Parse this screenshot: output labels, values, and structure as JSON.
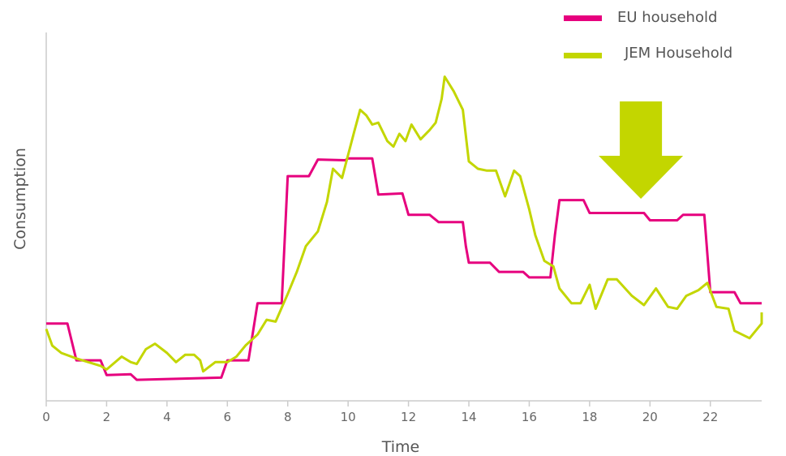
{
  "chart_data": {
    "type": "line",
    "xlabel": "Time",
    "ylabel": "Consumption",
    "xlim": [
      0,
      23.7
    ],
    "ylim": [
      0,
      100
    ],
    "xticks": [
      0,
      2,
      4,
      6,
      8,
      10,
      12,
      14,
      16,
      18,
      20,
      22
    ],
    "grid": false,
    "legend_position": "top-right",
    "series": [
      {
        "name": "EU household",
        "color": "#e6007e",
        "points": [
          [
            0,
            21
          ],
          [
            0.7,
            21
          ],
          [
            1,
            11
          ],
          [
            1.8,
            11
          ],
          [
            2,
            7
          ],
          [
            2.8,
            7.2
          ],
          [
            3,
            5.7
          ],
          [
            5.8,
            6.3
          ],
          [
            6,
            11
          ],
          [
            6.7,
            11
          ],
          [
            7,
            26.5
          ],
          [
            7.8,
            26.5
          ],
          [
            8,
            61
          ],
          [
            8.7,
            61
          ],
          [
            9,
            65.5
          ],
          [
            9.9,
            65.3
          ],
          [
            10,
            65.8
          ],
          [
            10.8,
            65.8
          ],
          [
            11,
            56
          ],
          [
            11.8,
            56.3
          ],
          [
            12,
            50.5
          ],
          [
            12.7,
            50.5
          ],
          [
            13,
            48.5
          ],
          [
            13.8,
            48.5
          ],
          [
            13.9,
            42
          ],
          [
            14,
            37.5
          ],
          [
            14.7,
            37.5
          ],
          [
            15,
            35
          ],
          [
            15.8,
            35
          ],
          [
            16,
            33.5
          ],
          [
            16.7,
            33.5
          ],
          [
            16.85,
            45
          ],
          [
            17,
            54.5
          ],
          [
            17.8,
            54.5
          ],
          [
            18,
            51
          ],
          [
            19.8,
            51
          ],
          [
            20,
            49
          ],
          [
            20.9,
            49
          ],
          [
            21.1,
            50.5
          ],
          [
            21.8,
            50.5
          ],
          [
            22,
            29.5
          ],
          [
            22.8,
            29.5
          ],
          [
            23,
            26.5
          ],
          [
            23.7,
            26.5
          ]
        ]
      },
      {
        "name": "JEM Household",
        "color": "#c3d600",
        "points": [
          [
            0,
            19.5
          ],
          [
            0.2,
            15
          ],
          [
            0.5,
            13
          ],
          [
            1,
            11.5
          ],
          [
            1.8,
            9.5
          ],
          [
            2,
            8.5
          ],
          [
            2.5,
            12
          ],
          [
            2.8,
            10.5
          ],
          [
            3,
            10
          ],
          [
            3.3,
            14
          ],
          [
            3.6,
            15.5
          ],
          [
            4,
            13
          ],
          [
            4.3,
            10.5
          ],
          [
            4.6,
            12.5
          ],
          [
            4.9,
            12.5
          ],
          [
            5.1,
            11
          ],
          [
            5.2,
            8
          ],
          [
            5.6,
            10.5
          ],
          [
            6,
            10.5
          ],
          [
            6.3,
            12
          ],
          [
            6.6,
            15
          ],
          [
            7,
            18
          ],
          [
            7.3,
            22
          ],
          [
            7.6,
            21.5
          ],
          [
            8,
            29
          ],
          [
            8.3,
            35
          ],
          [
            8.6,
            42
          ],
          [
            9,
            46
          ],
          [
            9.3,
            54
          ],
          [
            9.5,
            63
          ],
          [
            9.8,
            60.5
          ],
          [
            10.2,
            73
          ],
          [
            10.4,
            79
          ],
          [
            10.6,
            77.5
          ],
          [
            10.8,
            75
          ],
          [
            11,
            75.5
          ],
          [
            11.3,
            70.5
          ],
          [
            11.5,
            69
          ],
          [
            11.7,
            72.5
          ],
          [
            11.9,
            70.5
          ],
          [
            12.1,
            75
          ],
          [
            12.4,
            71
          ],
          [
            12.7,
            73.5
          ],
          [
            12.9,
            75.5
          ],
          [
            13.1,
            82
          ],
          [
            13.2,
            88
          ],
          [
            13.5,
            84
          ],
          [
            13.8,
            79
          ],
          [
            14,
            65
          ],
          [
            14.3,
            63
          ],
          [
            14.6,
            62.5
          ],
          [
            14.9,
            62.5
          ],
          [
            15.2,
            55.5
          ],
          [
            15.5,
            62.5
          ],
          [
            15.7,
            61
          ],
          [
            16,
            52
          ],
          [
            16.2,
            45
          ],
          [
            16.5,
            38
          ],
          [
            16.8,
            36.5
          ],
          [
            17,
            30.5
          ],
          [
            17.4,
            26.5
          ],
          [
            17.7,
            26.5
          ],
          [
            18,
            31.5
          ],
          [
            18.2,
            25
          ],
          [
            18.6,
            33
          ],
          [
            18.9,
            33
          ],
          [
            19.4,
            28.5
          ],
          [
            19.8,
            26
          ],
          [
            20.2,
            30.5
          ],
          [
            20.6,
            25.5
          ],
          [
            20.9,
            25
          ],
          [
            21.2,
            28.5
          ],
          [
            21.6,
            30
          ],
          [
            21.9,
            32
          ],
          [
            22.2,
            25.5
          ],
          [
            22.6,
            25
          ],
          [
            22.8,
            19
          ],
          [
            23.3,
            17
          ],
          [
            23.6,
            20
          ],
          [
            23.7,
            21
          ],
          [
            23.9,
            22.5
          ],
          [
            24.2,
            24
          ],
          [
            24.5,
            24
          ]
        ]
      }
    ],
    "annotation": {
      "type": "down-arrow",
      "color": "#c3d600",
      "x": 19.7
    }
  }
}
